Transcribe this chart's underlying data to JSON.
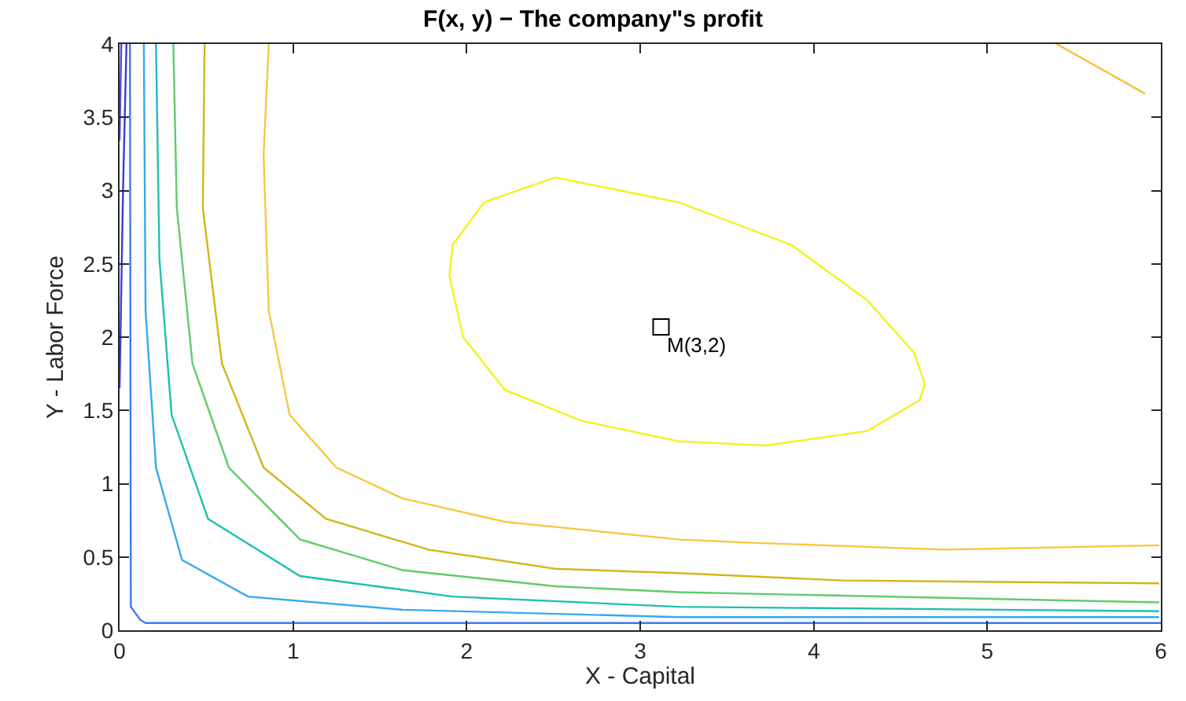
{
  "chart_data": {
    "type": "line",
    "title": "F(x, y) − The company\"s profit",
    "xlabel": "X - Capital",
    "ylabel": "Y - Labor Force",
    "xlim": [
      0,
      6
    ],
    "ylim": [
      0,
      4
    ],
    "xticks": [
      0,
      1,
      2,
      3,
      4,
      5,
      6
    ],
    "yticks": [
      0,
      0.5,
      1,
      1.5,
      2,
      2.5,
      3,
      3.5,
      4
    ],
    "line_style": "solid",
    "series": [
      {
        "color": "#3b3bd6",
        "x": [
          0.04,
          0.02,
          0.0
        ],
        "values": [
          4.0,
          3.0,
          1.65
        ]
      },
      {
        "color": "#4a4ae0",
        "x": [
          0.01,
          0.0
        ],
        "values": [
          4.0,
          3.34
        ]
      },
      {
        "color": "#3a7bf2",
        "x": [
          0.06,
          0.065,
          0.12,
          0.15,
          1.0,
          3.0,
          6.0
        ],
        "values": [
          4.0,
          0.16,
          0.07,
          0.05,
          0.05,
          0.05,
          0.05
        ]
      },
      {
        "color": "#36a8f0",
        "x": [
          0.14,
          0.15,
          0.21,
          0.36,
          0.74,
          1.63,
          3.22,
          5.99
        ],
        "values": [
          4.0,
          2.18,
          1.11,
          0.48,
          0.23,
          0.14,
          0.09,
          0.09
        ]
      },
      {
        "color": "#1dbfb0",
        "x": [
          0.21,
          0.23,
          0.3,
          0.51,
          1.04,
          1.92,
          3.22,
          5.99
        ],
        "values": [
          4.0,
          2.53,
          1.47,
          0.76,
          0.37,
          0.23,
          0.16,
          0.13
        ]
      },
      {
        "color": "#5fcc6a",
        "x": [
          0.31,
          0.33,
          0.42,
          0.63,
          1.04,
          1.63,
          2.51,
          3.22,
          5.99
        ],
        "values": [
          4.0,
          2.88,
          1.82,
          1.11,
          0.62,
          0.41,
          0.3,
          0.26,
          0.19
        ]
      },
      {
        "color": "#d4b51a",
        "x": [
          0.49,
          0.48,
          0.59,
          0.83,
          1.19,
          1.78,
          2.51,
          3.22,
          4.17,
          5.99
        ],
        "values": [
          4.0,
          2.88,
          1.82,
          1.11,
          0.76,
          0.55,
          0.42,
          0.39,
          0.34,
          0.32
        ]
      },
      {
        "color": "#f5c842",
        "x": [
          0.86,
          0.83,
          0.86,
          0.98,
          1.25,
          1.63,
          2.22,
          3.22,
          3.58,
          4.75,
          5.99
        ],
        "values": [
          4.0,
          3.24,
          2.18,
          1.47,
          1.11,
          0.9,
          0.74,
          0.62,
          0.6,
          0.55,
          0.58
        ]
      },
      {
        "color": "#f7c23a",
        "x": [
          5.4,
          5.91
        ],
        "values": [
          4.0,
          3.66
        ]
      },
      {
        "type": "scatter",
        "marker": "square",
        "color": "#000000",
        "x": [
          3.12
        ],
        "values": [
          2.07
        ]
      }
    ],
    "annotations": [
      {
        "text": "M(3,2)",
        "x": 3.12,
        "y": 2.07
      }
    ]
  }
}
